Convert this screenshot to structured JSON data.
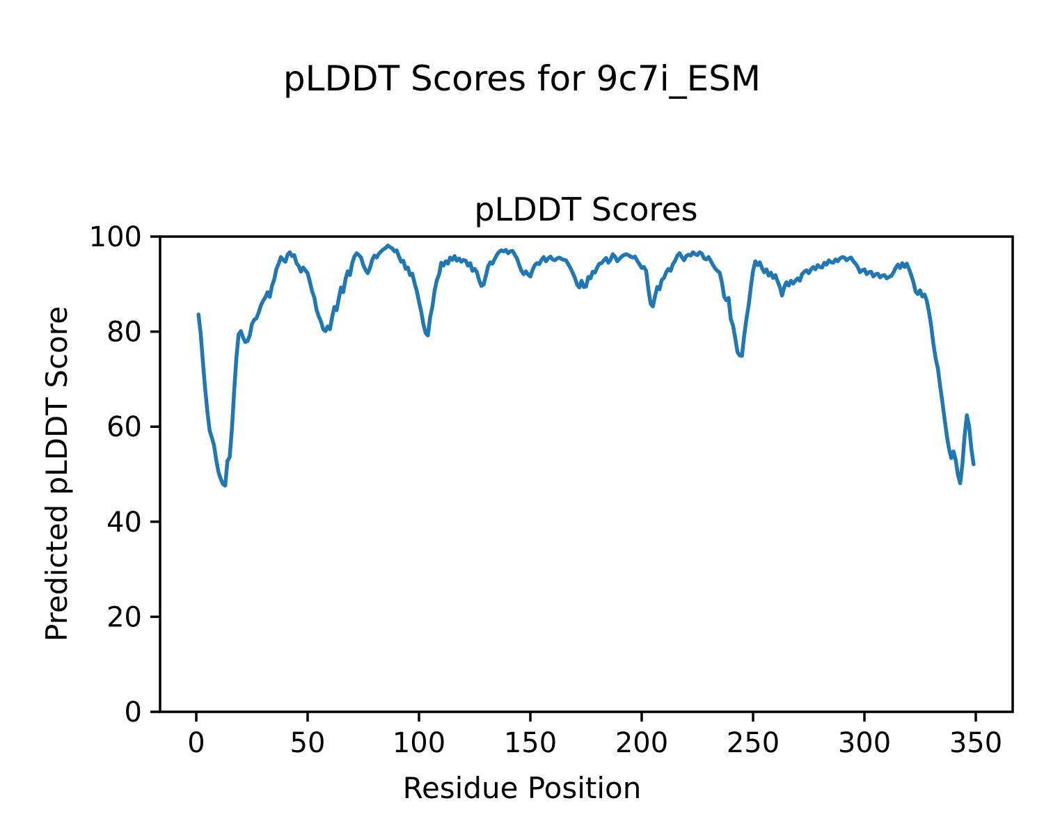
{
  "figure": {
    "suptitle": "pLDDT Scores for 9c7i_ESM",
    "background": "#ffffff"
  },
  "chart_data": {
    "type": "line",
    "title": "pLDDT Scores",
    "xlabel": "Residue Position",
    "ylabel": "Predicted pLDDT Score",
    "xlim": [
      -16.25,
      366.56
    ],
    "ylim": [
      0,
      100
    ],
    "x_ticks": [
      0,
      50,
      100,
      150,
      200,
      250,
      300,
      350
    ],
    "y_ticks": [
      0,
      20,
      40,
      60,
      80,
      100
    ],
    "grid": false,
    "legend": null,
    "line_color": "#1f77b4",
    "axis_color": "#000000",
    "x_start": 1,
    "x_step": 1,
    "series": [
      {
        "name": "pLDDT",
        "y": [
          83.6,
          79.5,
          73.5,
          67.9,
          63.1,
          59.2,
          57.7,
          56.0,
          52.9,
          50.4,
          49.0,
          47.9,
          47.6,
          52.8,
          53.6,
          59.5,
          67.4,
          74.4,
          79.4,
          80.1,
          78.8,
          77.8,
          78.0,
          79.2,
          81.6,
          82.5,
          82.8,
          84.0,
          85.5,
          86.5,
          87.2,
          88.3,
          87.3,
          89.6,
          91.0,
          93.2,
          94.3,
          95.7,
          95.1,
          94.7,
          96.2,
          96.7,
          95.9,
          96.1,
          94.4,
          93.8,
          92.6,
          93.5,
          92.9,
          92.3,
          90.5,
          88.5,
          87.2,
          84.6,
          83.2,
          82.1,
          80.5,
          80.1,
          81.1,
          80.5,
          83.0,
          85.2,
          84.5,
          87.0,
          89.3,
          88.3,
          91.0,
          92.7,
          91.9,
          94.4,
          95.8,
          96.5,
          96.1,
          95.6,
          94.0,
          93.0,
          92.3,
          93.4,
          95.1,
          96.0,
          95.6,
          96.4,
          96.9,
          97.3,
          97.6,
          98.1,
          97.8,
          97.5,
          96.9,
          97.1,
          95.8,
          94.7,
          94.9,
          93.2,
          93.5,
          91.9,
          92.2,
          90.2,
          88.6,
          86.3,
          84.2,
          81.5,
          79.7,
          79.2,
          83.0,
          85.2,
          88.6,
          90.8,
          92.0,
          94.5,
          93.9,
          94.8,
          94.3,
          95.6,
          95.1,
          95.9,
          94.9,
          95.4,
          94.7,
          95.1,
          94.9,
          93.9,
          94.4,
          92.8,
          93.2,
          92.5,
          90.8,
          89.6,
          89.9,
          91.7,
          93.7,
          94.6,
          94.3,
          95.3,
          96.2,
          96.8,
          97.1,
          96.9,
          97.2,
          96.5,
          96.9,
          97.0,
          96.2,
          95.4,
          94.0,
          92.8,
          92.1,
          92.7,
          92.0,
          91.6,
          93.0,
          94.0,
          94.4,
          94.2,
          95.1,
          95.7,
          94.8,
          95.4,
          95.8,
          95.2,
          95.0,
          95.4,
          95.6,
          95.3,
          95.1,
          95.0,
          94.2,
          93.4,
          92.4,
          91.3,
          89.9,
          89.3,
          90.7,
          89.4,
          89.5,
          91.5,
          91.2,
          92.6,
          92.4,
          93.5,
          94.3,
          94.4,
          95.0,
          95.5,
          94.5,
          95.1,
          96.3,
          95.8,
          94.8,
          95.3,
          95.8,
          96.1,
          96.3,
          96.1,
          95.8,
          95.6,
          95.8,
          94.9,
          94.2,
          93.4,
          93.6,
          92.8,
          88.9,
          85.9,
          85.3,
          87.5,
          89.4,
          88.9,
          90.9,
          91.3,
          92.5,
          93.2,
          92.8,
          94.2,
          94.9,
          96.0,
          96.5,
          95.7,
          95.0,
          95.9,
          96.2,
          96.0,
          96.7,
          96.3,
          96.1,
          96.7,
          96.4,
          95.4,
          95.2,
          95.7,
          94.9,
          94.0,
          93.3,
          92.8,
          92.4,
          90.4,
          87.4,
          86.6,
          87.1,
          82.6,
          81.3,
          78.6,
          75.7,
          75.0,
          74.9,
          79.1,
          82.6,
          85.5,
          89.4,
          92.8,
          94.8,
          94.0,
          94.6,
          93.4,
          92.5,
          93.1,
          91.8,
          92.4,
          91.3,
          91.9,
          90.6,
          89.4,
          87.6,
          89.4,
          90.4,
          89.7,
          90.7,
          90.1,
          90.7,
          91.2,
          90.7,
          92.1,
          92.6,
          92.9,
          92.3,
          93.1,
          93.6,
          93.1,
          94.0,
          93.6,
          93.5,
          94.5,
          94.1,
          95.0,
          94.6,
          94.5,
          95.2,
          94.8,
          95.4,
          95.7,
          95.6,
          95.0,
          95.4,
          95.6,
          94.8,
          94.3,
          93.6,
          92.5,
          92.9,
          93.1,
          92.1,
          92.5,
          92.6,
          91.6,
          92.1,
          92.2,
          91.4,
          91.8,
          91.9,
          91.2,
          91.5,
          91.7,
          92.4,
          93.4,
          94.1,
          93.4,
          94.4,
          93.6,
          94.3,
          93.2,
          91.9,
          90.4,
          88.4,
          87.9,
          88.7,
          87.4,
          87.8,
          86.5,
          84.1,
          81.1,
          77.3,
          74.3,
          72.2,
          68.5,
          65.2,
          61.6,
          58.1,
          55.3,
          53.4,
          54.8,
          52.9,
          49.8,
          48.1,
          52.2,
          58.2,
          62.4,
          60.1,
          55.4,
          52.1
        ]
      }
    ]
  }
}
